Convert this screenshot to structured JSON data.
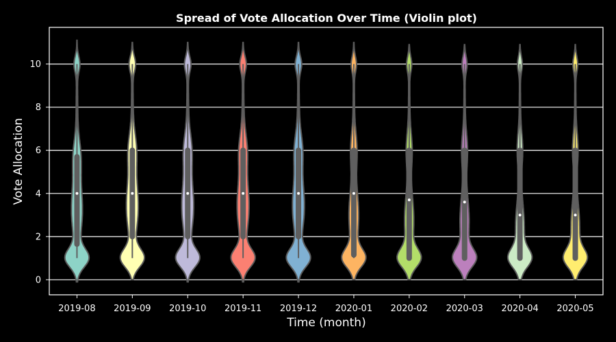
{
  "chart_data": {
    "type": "violin",
    "title": "Spread of Vote Allocation Over Time (Violin plot)",
    "xlabel": "Time (month)",
    "ylabel": "Vote Allocation",
    "ylim": [
      -0.7,
      11.7
    ],
    "yticks": [
      0,
      2,
      4,
      6,
      8,
      10
    ],
    "grid": "horizontal",
    "background": "#000000",
    "categories": [
      "2019-08",
      "2019-09",
      "2019-10",
      "2019-11",
      "2019-12",
      "2020-01",
      "2020-02",
      "2020-03",
      "2020-04",
      "2020-05"
    ],
    "colors": [
      "#8dd3c7",
      "#ffffb3",
      "#bebada",
      "#fb8072",
      "#80b1d3",
      "#fdb462",
      "#b3de69",
      "#bc80bd",
      "#ccebc5",
      "#ffed6f"
    ],
    "series": [
      {
        "category": "2019-08",
        "min": 1,
        "q1": 1.65,
        "median": 4,
        "q3": 5.7,
        "max": 10,
        "kde_min": -0.1,
        "kde_max": 11.1
      },
      {
        "category": "2019-09",
        "min": 1,
        "q1": 2,
        "median": 4,
        "q3": 6,
        "max": 10,
        "kde_min": 0,
        "kde_max": 11.0
      },
      {
        "category": "2019-10",
        "min": 1,
        "q1": 2,
        "median": 4,
        "q3": 6,
        "max": 10,
        "kde_min": -0.1,
        "kde_max": 11.0
      },
      {
        "category": "2019-11",
        "min": 1,
        "q1": 2,
        "median": 4,
        "q3": 6,
        "max": 10,
        "kde_min": -0.1,
        "kde_max": 11.0
      },
      {
        "category": "2019-12",
        "min": 1,
        "q1": 2,
        "median": 4,
        "q3": 6,
        "max": 10,
        "kde_min": -0.1,
        "kde_max": 11.0
      },
      {
        "category": "2020-01",
        "min": 1,
        "q1": 1.15,
        "median": 4,
        "q3": 6,
        "max": 10,
        "kde_min": 0,
        "kde_max": 11.0
      },
      {
        "category": "2020-02",
        "min": 1,
        "q1": 1,
        "median": 3.7,
        "q3": 6,
        "max": 10,
        "kde_min": 0,
        "kde_max": 10.9
      },
      {
        "category": "2020-03",
        "min": 1,
        "q1": 1,
        "median": 3.6,
        "q3": 6,
        "max": 10,
        "kde_min": 0,
        "kde_max": 10.9
      },
      {
        "category": "2020-04",
        "min": 1,
        "q1": 1,
        "median": 3,
        "q3": 6,
        "max": 10,
        "kde_min": 0,
        "kde_max": 10.9
      },
      {
        "category": "2020-05",
        "min": 1,
        "q1": 1,
        "median": 3,
        "q3": 6,
        "max": 10,
        "kde_min": 0,
        "kde_max": 10.9
      }
    ]
  }
}
